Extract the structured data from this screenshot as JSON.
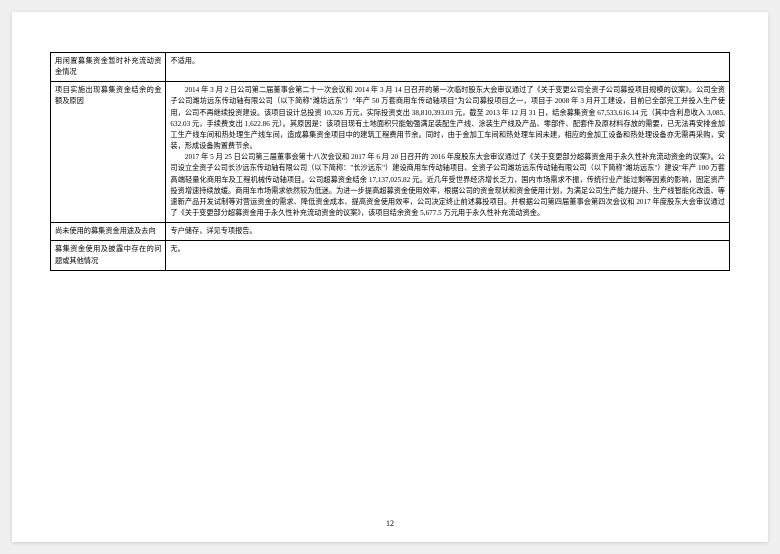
{
  "page_number": "12",
  "table": {
    "rows": [
      {
        "label": "用闲置募集资金暂时补充流动资金情况",
        "content": "不适用。"
      },
      {
        "label": "项目实施出现募集资金结余的金额及原因",
        "content": "　　2014 年 3 月 2 日公司第二届董事会第二十一次会议和 2014 年 3 月 14 日召开的第一次临时股东大会审议通过了《关于变更公司全资子公司募投项目规模的议案》。公司全资子公司潍坊远东传动轴有限公司（以下简称\"潍坊远东\"）\"年产 50 万套商用车传动轴项目\"为公司募投项目之一，项目于 2008 年 3 月开工建设，目前已全部完工并投入生产使用，公司不再继续投资建设。该项目设计总投资 10,326 万元，实际投资支出 38,810,393.03 元，截至 2013 年 12 月 31 日，结余募集资金 67,533,616.14 元（其中含利息收入 3,085,632.03 元，手续费支出 1,622.86 元）。其原因是：该项目现有土地面积只能勉强满足装配生产线、涂装生产线及产品、零部件、配套件及原材料存放的需要，已无法再安排金加工生产线车间和热处理生产线车间，造成募集资金项目中的建筑工程费用节余。同时，由于金加工车间和热处理车间未建，相应的金加工设备和热处理设备亦无需再采购，安装，形成设备购置费节余。\n　　2017 年 5 月 25 日公司第三届董事会第十八次会议和 2017 年 6 月 20 日召开的 2016 年度股东大会审议通过了《关于变更部分超募资金用于永久性补充流动资金的议案》。公司设立全资子公司长沙远东传动轴有限公司（以下简称：\"长沙远东\"）建设商用车传动轴项目、全资子公司潍坊远东传动轴有限公司（以下简称\"潍坊远东\"）建设\"年产 100 万套高端轻量化商用车及工程机械传动轴项目。公司超募资金结余 17,137,025.82 元。近几年受世界经济增长乏力，国内市场需求不振，传统行业产能过剩等因素的影响，固定资产投资增速持续放缓。商用车市场需求依然较为低迷。为进一步提高超募资金使用效率，根据公司的资金现状和资金使用计划，为满足公司生产能力提升、生产线智能化改造、等速新产品开发试制等对营运资金的需求、降低资金成本、提高资金使用效率，公司决定终止前述募投项目。并根据公司第四届董事会第四次会议和 2017 年度股东大会审议通过了《关于变更部分超募资金用于永久性补充流动资金的议案》，该项目结余资金 5,677.5 万元用于永久性补充流动资金。"
      },
      {
        "label": "尚未使用的募集资金用途及去向",
        "content": "专户储存，详见专项报告。"
      },
      {
        "label": "募集资金使用及披露中存在的问题或其他情况",
        "content": "无。"
      }
    ]
  },
  "style": {
    "label_fontsize": 7.2,
    "content_fontsize": 7.2,
    "line_height": 1.55,
    "border_color": "#000000",
    "text_color": "#000000",
    "background_color": "#ffffff",
    "page_background": "#f0f0f0",
    "col_widths_pct": [
      17,
      83
    ]
  }
}
